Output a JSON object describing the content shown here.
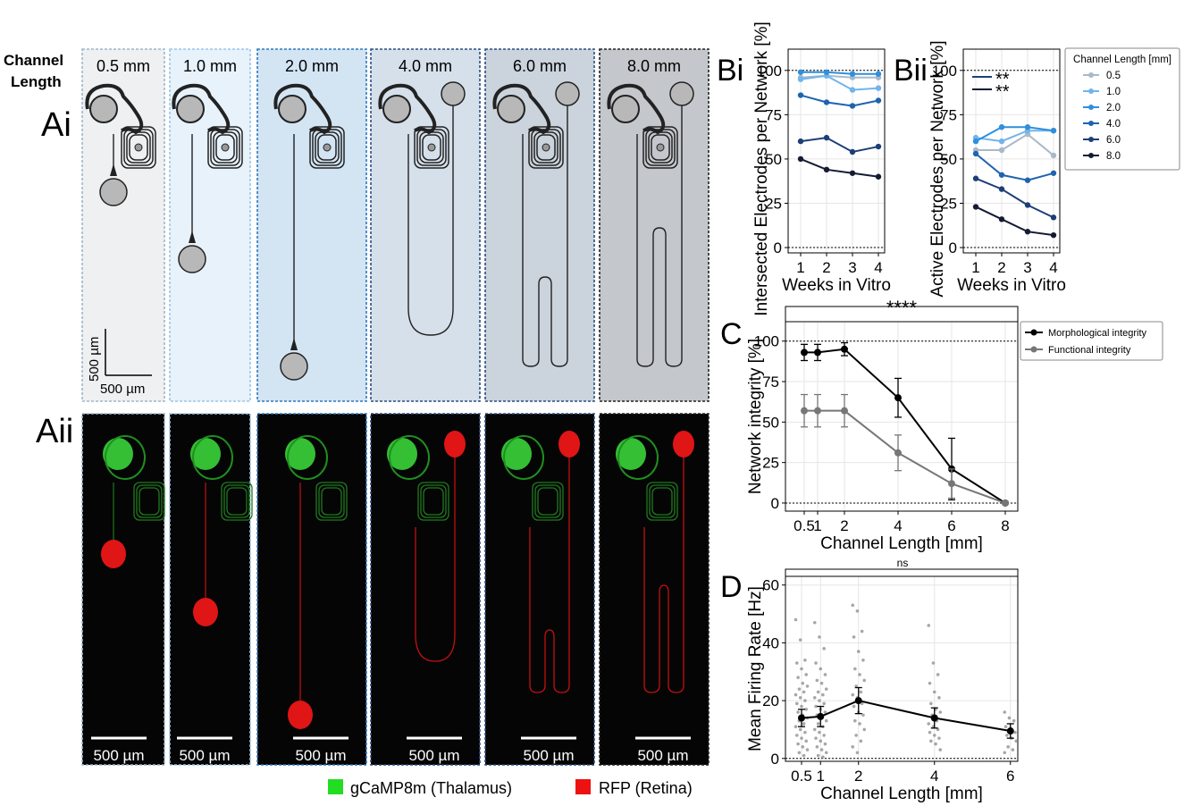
{
  "figure": {
    "channel_label_line1": "Channel",
    "channel_label_line2": "Length",
    "panel_Ai": "Ai",
    "panel_Aii": "Aii",
    "panel_Bi": "Bi",
    "panel_Bii": "Bii",
    "panel_C": "C",
    "panel_D": "D",
    "channel_lengths": [
      "0.5 mm",
      "1.0 mm",
      "2.0 mm",
      "4.0 mm",
      "6.0 mm",
      "8.0 mm"
    ],
    "scale_vertical": "500 µm",
    "scale_horizontal": "500 µm",
    "image_scale_label": "500 µm",
    "legend_green": "gCaMP8m (Thalamus)",
    "legend_red": "RFP (Retina)",
    "colors": {
      "green": "#22dd22",
      "red": "#ee1111",
      "series": [
        "#a9b9c9",
        "#72b4ea",
        "#2f8fdc",
        "#1f63b0",
        "#1d3f78",
        "#141c33"
      ],
      "panel_bg": [
        "#eef0f2",
        "#e7f2fb",
        "#d3e4f3",
        "#d6e0ea",
        "#cbd3dc",
        "#c4c8cd"
      ]
    }
  },
  "chart_data": [
    {
      "id": "Bi",
      "type": "line",
      "xlabel": "Weeks in Vitro",
      "ylabel": "Intersected Electrodes per Network [%]",
      "x": [
        1,
        2,
        3,
        4
      ],
      "xticks": [
        "1",
        "2",
        "3",
        "4"
      ],
      "yticks": [
        "0",
        "25",
        "50",
        "75",
        "100"
      ],
      "ylim": [
        -3,
        112
      ],
      "series": [
        {
          "name": "0.5",
          "values": [
            96,
            97,
            96,
            96
          ]
        },
        {
          "name": "1.0",
          "values": [
            95,
            97,
            89,
            90
          ]
        },
        {
          "name": "2.0",
          "values": [
            99,
            99,
            98,
            98
          ]
        },
        {
          "name": "4.0",
          "values": [
            86,
            82,
            80,
            83
          ]
        },
        {
          "name": "6.0",
          "values": [
            60,
            62,
            54,
            57
          ]
        },
        {
          "name": "8.0",
          "values": [
            50,
            44,
            42,
            40
          ]
        }
      ]
    },
    {
      "id": "Bii",
      "type": "line",
      "xlabel": "Weeks in Vitro",
      "ylabel": "Active Electrodes per Network [%]",
      "x": [
        1,
        2,
        3,
        4
      ],
      "xticks": [
        "1",
        "2",
        "3",
        "4"
      ],
      "yticks": [
        "0",
        "25",
        "50",
        "75",
        "100"
      ],
      "ylim": [
        -3,
        112
      ],
      "annotations": [
        "**",
        "**"
      ],
      "legend_title": "Channel Length [mm]",
      "legend_placement": "right",
      "series": [
        {
          "name": "0.5",
          "values": [
            55,
            55,
            64,
            52
          ]
        },
        {
          "name": "1.0",
          "values": [
            62,
            60,
            66,
            66
          ]
        },
        {
          "name": "2.0",
          "values": [
            60,
            68,
            68,
            66
          ]
        },
        {
          "name": "4.0",
          "values": [
            53,
            41,
            38,
            42
          ]
        },
        {
          "name": "6.0",
          "values": [
            39,
            33,
            24,
            17
          ]
        },
        {
          "name": "8.0",
          "values": [
            23,
            16,
            9,
            7
          ]
        }
      ]
    },
    {
      "id": "C",
      "type": "line",
      "xlabel": "Channel Length [mm]",
      "ylabel": "Network integrity [%]",
      "x": [
        0.5,
        1,
        2,
        4,
        6,
        8
      ],
      "xticks": [
        "0.5",
        "1",
        "2",
        "4",
        "6",
        "8"
      ],
      "yticks": [
        "0",
        "25",
        "50",
        "75",
        "100"
      ],
      "ylim": [
        -5,
        112
      ],
      "significance": "****",
      "legend_placement": "right",
      "series": [
        {
          "name": "Morphological integrity",
          "values": [
            93,
            93,
            95,
            65,
            21,
            0
          ],
          "err": [
            5,
            5,
            4,
            12,
            19,
            0
          ],
          "color": "#000000"
        },
        {
          "name": "Functional integrity",
          "values": [
            57,
            57,
            57,
            31,
            12,
            0
          ],
          "err": [
            10,
            10,
            10,
            11,
            9,
            0
          ],
          "color": "#777777"
        }
      ]
    },
    {
      "id": "D",
      "type": "scatter",
      "xlabel": "Channel Length [mm]",
      "ylabel": "Mean Firing Rate [Hz]",
      "x": [
        0.5,
        1,
        2,
        4,
        6
      ],
      "xticks": [
        "0.5",
        "1",
        "2",
        "4",
        "6"
      ],
      "yticks": [
        "0",
        "20",
        "40",
        "60"
      ],
      "ylim": [
        -1,
        63
      ],
      "significance": "ns",
      "series": [
        {
          "name": "mean",
          "values": [
            14,
            14.5,
            20,
            14,
            9.5
          ],
          "err": [
            3,
            3.5,
            4.5,
            3.5,
            2.5
          ]
        }
      ],
      "points": {
        "0.5": [
          48,
          41,
          34,
          33,
          31,
          29,
          28,
          26,
          25,
          24,
          23,
          22,
          21,
          20,
          19,
          18,
          17,
          16,
          15,
          14,
          13,
          12,
          11,
          10,
          9,
          8,
          7,
          6,
          5,
          4,
          3,
          2,
          1
        ],
        "1": [
          47,
          42,
          38,
          33,
          31,
          29,
          27,
          26,
          24,
          23,
          22,
          21,
          20,
          19,
          18,
          17,
          16,
          15,
          14,
          13,
          12,
          11,
          10,
          9,
          8,
          7,
          6,
          5,
          4,
          3,
          2,
          1,
          0.5
        ],
        "2": [
          53,
          51,
          44,
          42,
          37,
          34,
          31,
          29,
          27,
          25,
          23,
          22,
          21,
          19,
          18,
          16,
          15,
          13,
          12,
          10,
          8,
          6,
          4,
          2
        ],
        "4": [
          46,
          33,
          29,
          26,
          23,
          21,
          19,
          17,
          16,
          15,
          13,
          12,
          11,
          10,
          9,
          8,
          7,
          6,
          5,
          3
        ],
        "6": [
          16,
          14,
          13,
          11,
          10,
          9,
          8,
          7,
          6,
          4,
          3,
          2
        ]
      }
    }
  ]
}
